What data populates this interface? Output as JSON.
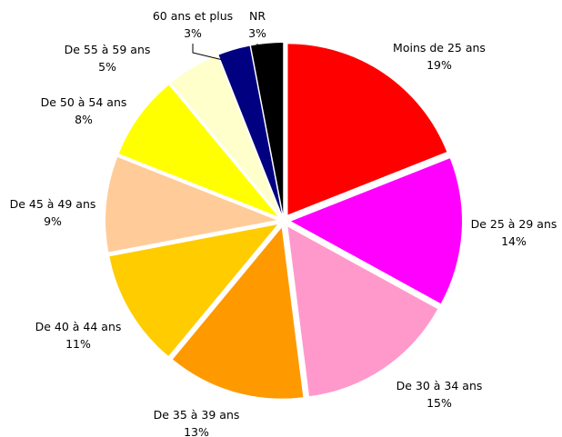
{
  "chart_data": {
    "type": "pie",
    "title": "",
    "start_angle_deg": 0,
    "direction": "clockwise",
    "slices": [
      {
        "label": "Moins de 25 ans",
        "pct_label": "19%",
        "value": 19,
        "color": "#ff0000"
      },
      {
        "label": "De 25 à 29 ans",
        "pct_label": "14%",
        "value": 14,
        "color": "#ff00ff"
      },
      {
        "label": "De 30 à 34 ans",
        "pct_label": "15%",
        "value": 15,
        "color": "#ff99cc"
      },
      {
        "label": "De 35 à 39 ans",
        "pct_label": "13%",
        "value": 13,
        "color": "#ff9900"
      },
      {
        "label": "De 40 à 44 ans",
        "pct_label": "11%",
        "value": 11,
        "color": "#ffcc00"
      },
      {
        "label": "De 45 à 49 ans",
        "pct_label": "9%",
        "value": 9,
        "color": "#ffcc99"
      },
      {
        "label": "De 50 à 54 ans",
        "pct_label": "8%",
        "value": 8,
        "color": "#ffff00"
      },
      {
        "label": "De 55 à 59 ans",
        "pct_label": "5%",
        "value": 5,
        "color": "#ffffcc"
      },
      {
        "label": "60 ans et plus",
        "pct_label": "3%",
        "value": 3,
        "color": "#000080"
      },
      {
        "label": "NR",
        "pct_label": "3%",
        "value": 3,
        "color": "#000000"
      }
    ]
  }
}
